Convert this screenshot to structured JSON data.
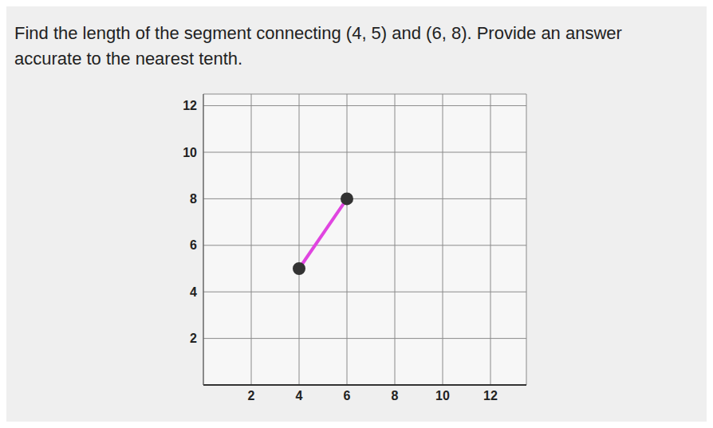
{
  "chart_data": {
    "type": "line",
    "title": "Find the length of the segment connecting (4, 5) and (6, 8). Provide an answer accurate to the nearest tenth.",
    "x": [
      4,
      6
    ],
    "values": [
      5,
      8
    ],
    "color": "#e045e0",
    "marker": "circle",
    "xlim": [
      0,
      13.5
    ],
    "ylim": [
      0,
      12.5
    ],
    "xticks": [
      2,
      4,
      6,
      8,
      10,
      12
    ],
    "yticks": [
      2,
      4,
      6,
      8,
      10,
      12
    ],
    "grid": true
  }
}
